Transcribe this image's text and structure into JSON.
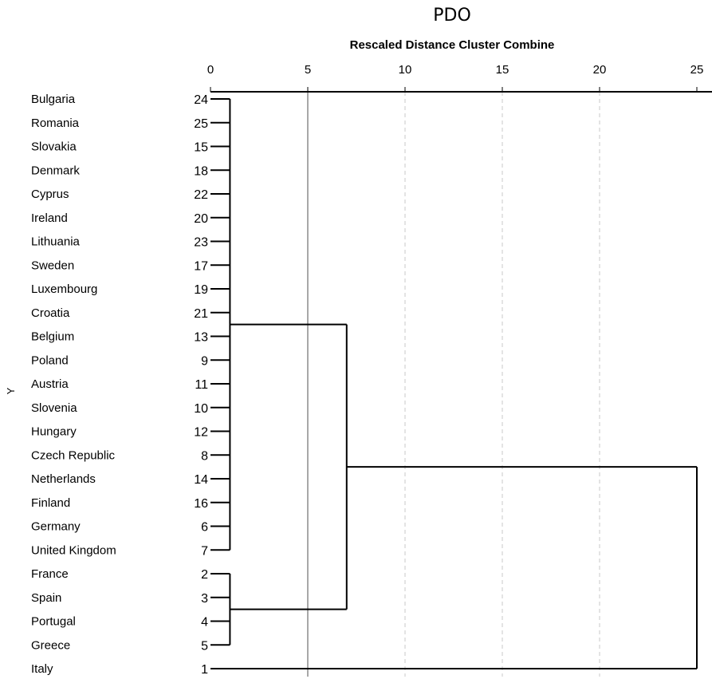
{
  "chart_data": {
    "type": "dendrogram",
    "title": "PDO",
    "subtitle": "Rescaled Distance Cluster Combine",
    "ylabel": "Y",
    "x_ticks": [
      0,
      5,
      10,
      15,
      20,
      25
    ],
    "xlim": [
      0,
      25
    ],
    "leaves": [
      {
        "label": "Bulgaria",
        "case": "24"
      },
      {
        "label": "Romania",
        "case": "25"
      },
      {
        "label": "Slovakia",
        "case": "15"
      },
      {
        "label": "Denmark",
        "case": "18"
      },
      {
        "label": "Cyprus",
        "case": "22"
      },
      {
        "label": "Ireland",
        "case": "20"
      },
      {
        "label": "Lithuania",
        "case": "23"
      },
      {
        "label": "Sweden",
        "case": "17"
      },
      {
        "label": "Luxembourg",
        "case": "19"
      },
      {
        "label": "Croatia",
        "case": "21"
      },
      {
        "label": "Belgium",
        "case": "13"
      },
      {
        "label": "Poland",
        "case": "9"
      },
      {
        "label": "Austria",
        "case": "11"
      },
      {
        "label": "Slovenia",
        "case": "10"
      },
      {
        "label": "Hungary",
        "case": "12"
      },
      {
        "label": "Czech Republic",
        "case": "8"
      },
      {
        "label": "Netherlands",
        "case": "14"
      },
      {
        "label": "Finland",
        "case": "16"
      },
      {
        "label": "Germany",
        "case": "6"
      },
      {
        "label": "United Kingdom",
        "case": "7"
      },
      {
        "label": "France",
        "case": "2"
      },
      {
        "label": "Spain",
        "case": "3"
      },
      {
        "label": "Portugal",
        "case": "4"
      },
      {
        "label": "Greece",
        "case": "5"
      },
      {
        "label": "Italy",
        "case": "1"
      }
    ],
    "merges": [
      {
        "name": "cluster-a",
        "leaf_range": [
          0,
          19
        ],
        "distance": 1
      },
      {
        "name": "cluster-b",
        "leaf_range": [
          20,
          23
        ],
        "distance": 1
      },
      {
        "name": "cluster-ab",
        "joins": [
          "cluster-a",
          "cluster-b"
        ],
        "distance": 7
      },
      {
        "name": "cluster-all",
        "joins": [
          "cluster-ab",
          "Italy"
        ],
        "distance": 25
      }
    ],
    "reference_line": 5,
    "grid": "dashed vertical at 10, 15, 20"
  }
}
